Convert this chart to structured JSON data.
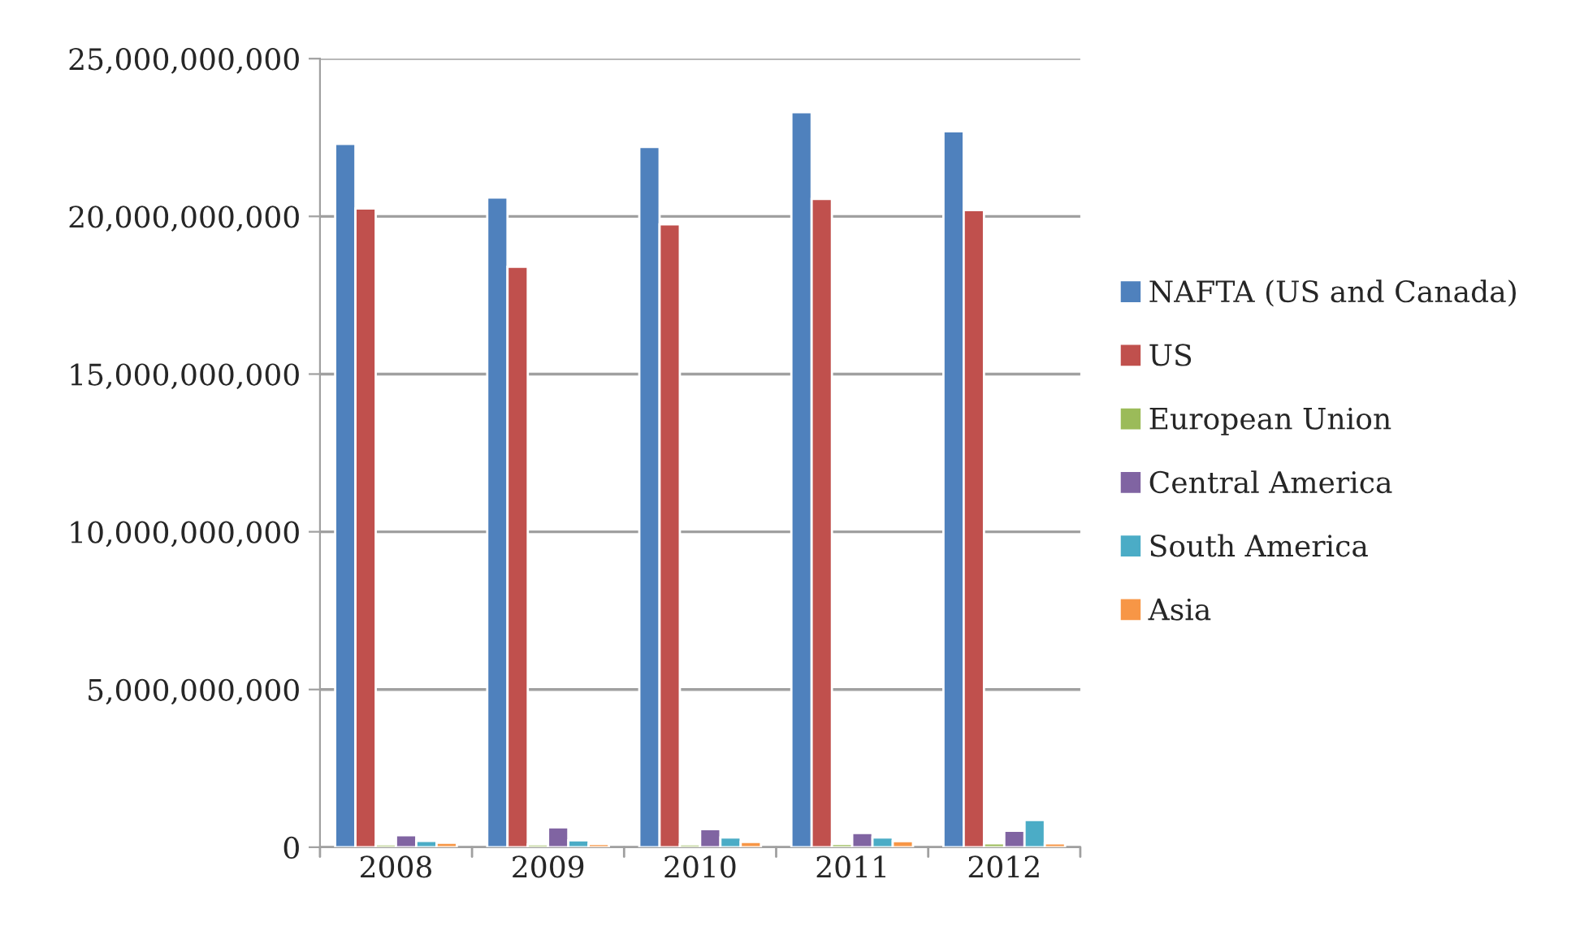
{
  "chart_data": {
    "type": "bar",
    "categories": [
      "2008",
      "2009",
      "2010",
      "2011",
      "2012"
    ],
    "series": [
      {
        "name": "NAFTA (US and Canada)",
        "color": "#4f81bd",
        "values": [
          22300000000,
          20600000000,
          22200000000,
          23300000000,
          22700000000
        ]
      },
      {
        "name": "US",
        "color": "#c0504d",
        "values": [
          20250000000,
          18400000000,
          19750000000,
          20550000000,
          20200000000
        ]
      },
      {
        "name": "European Union",
        "color": "#9bbb59",
        "values": [
          90000000,
          90000000,
          90000000,
          100000000,
          120000000
        ]
      },
      {
        "name": "Central America",
        "color": "#8064a2",
        "values": [
          380000000,
          630000000,
          570000000,
          450000000,
          520000000
        ]
      },
      {
        "name": "South America",
        "color": "#4bacc6",
        "values": [
          200000000,
          220000000,
          310000000,
          310000000,
          860000000
        ]
      },
      {
        "name": "Asia",
        "color": "#f79646",
        "values": [
          140000000,
          100000000,
          170000000,
          190000000,
          120000000
        ]
      }
    ],
    "ylim": [
      0,
      25000000000
    ],
    "yticks": [
      {
        "value": 0,
        "label": "0"
      },
      {
        "value": 5000000000,
        "label": "5,000,000,000"
      },
      {
        "value": 10000000000,
        "label": "10,000,000,000"
      },
      {
        "value": 15000000000,
        "label": "15,000,000,000"
      },
      {
        "value": 20000000000,
        "label": "20,000,000,000"
      },
      {
        "value": 25000000000,
        "label": "25,000,000,000"
      }
    ],
    "grid": "y",
    "legend": "right"
  }
}
